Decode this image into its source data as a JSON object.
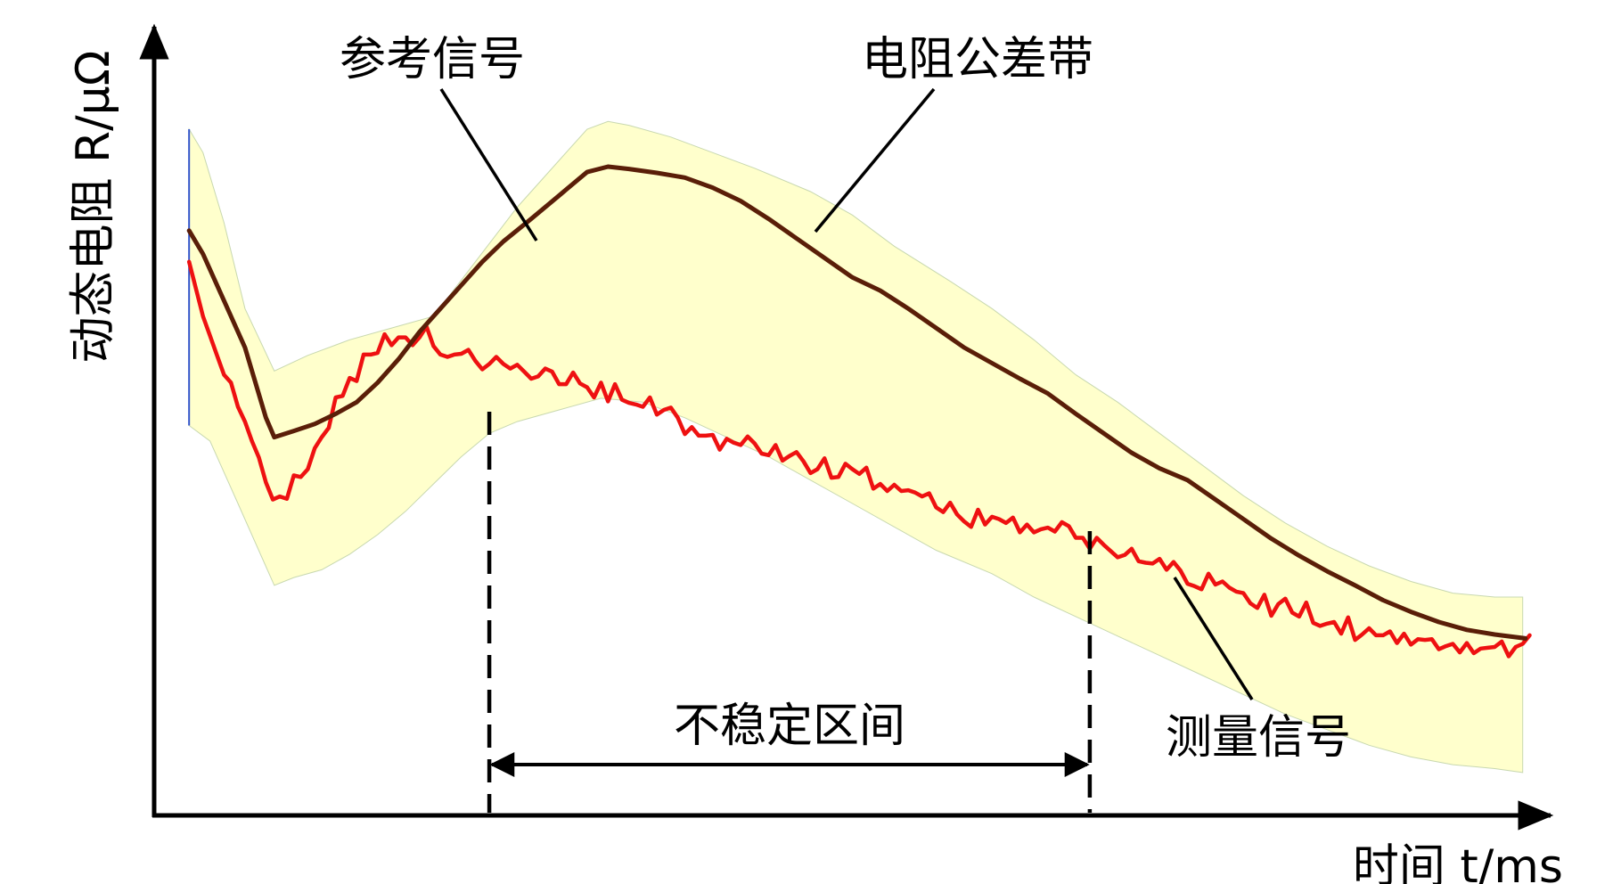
{
  "chart_data": {
    "type": "line",
    "title": "",
    "xlabel": "时间 t/ms",
    "ylabel": "动态电阻 R/μΩ",
    "grid": false,
    "annotations": {
      "reference": "参考信号",
      "band": "电阻公差带",
      "measured": "测量信号",
      "unstable": "不稳定区间"
    },
    "colors": {
      "band_fill": "#ffffcc",
      "reference": "#5a1e08",
      "measured": "#ee1111",
      "axis": "#000000"
    },
    "x_range": [
      0,
      100
    ],
    "y_range": [
      0,
      100
    ],
    "unstable_interval": [
      24,
      67
    ],
    "series": [
      {
        "role": "band_upper",
        "x": [
          2.5,
          3.5,
          5,
          6.5,
          8.6,
          11,
          14,
          17,
          20,
          23,
          26,
          29,
          31,
          32.5,
          34,
          37,
          40,
          43,
          47,
          50,
          53,
          57,
          60,
          63,
          66,
          69,
          72,
          75,
          78,
          81,
          84,
          87,
          90,
          93,
          96,
          98
        ],
        "y": [
          88,
          85,
          76,
          65,
          57,
          59,
          61,
          62.5,
          64,
          71,
          78,
          84,
          88,
          89,
          88.5,
          87,
          85,
          83,
          80,
          77,
          73,
          68.5,
          65,
          61,
          56.5,
          53,
          49,
          45,
          41,
          37.5,
          34.5,
          32,
          30,
          28.5,
          28,
          28
        ]
      },
      {
        "role": "band_lower",
        "x": [
          2.5,
          4,
          6,
          8.6,
          10,
          12,
          14,
          16,
          18,
          20,
          22,
          24,
          26,
          29,
          32,
          35,
          38,
          41,
          44,
          47,
          50,
          53,
          56,
          60,
          63,
          66,
          69,
          72,
          75,
          78,
          81,
          84,
          87,
          90,
          93,
          96,
          98
        ],
        "y": [
          50,
          48,
          40,
          29.5,
          30.5,
          31.5,
          33.5,
          36,
          39,
          42.5,
          46,
          49,
          50.5,
          52,
          53.5,
          53,
          51,
          48.5,
          46,
          43,
          40,
          37,
          34,
          31,
          28,
          25.5,
          23,
          20.5,
          18,
          15.5,
          13,
          11,
          9,
          7.5,
          6.5,
          6,
          5.5
        ]
      },
      {
        "name": "参考信号",
        "role": "reference",
        "x": [
          2.5,
          3.5,
          5,
          6.5,
          8,
          8.6,
          10,
          11.5,
          13,
          14.5,
          16,
          17.5,
          19,
          20.5,
          22,
          23.5,
          25,
          27,
          29,
          31,
          32.5,
          34,
          36,
          38,
          40,
          42,
          44,
          46,
          48,
          50,
          52,
          54,
          56,
          58,
          60,
          62,
          64,
          66,
          68,
          70,
          72,
          74,
          76,
          78,
          80,
          82,
          84,
          86,
          88,
          90,
          92,
          94,
          96,
          98.2
        ],
        "y": [
          75,
          72,
          66,
          60,
          51,
          48.5,
          49.3,
          50.2,
          51.5,
          53,
          55.5,
          58.5,
          62,
          65,
          68,
          71,
          73.6,
          76.5,
          79.5,
          82.5,
          83.2,
          82.9,
          82.4,
          81.8,
          80.5,
          78.8,
          76.5,
          74,
          71.5,
          69,
          67.3,
          65,
          62.5,
          60,
          58,
          56,
          54.1,
          51.5,
          49,
          46.5,
          44.5,
          43,
          40.5,
          38,
          35.5,
          33.3,
          31.3,
          29.5,
          27.6,
          26.1,
          24.8,
          23.8,
          23.2,
          22.7
        ]
      },
      {
        "name": "测量信号",
        "role": "measured",
        "x": [
          2.5,
          3,
          3.5,
          4,
          4.5,
          5,
          5.5,
          6,
          6.5,
          7,
          7.5,
          8,
          8.5,
          9,
          9.5,
          10,
          10.5,
          11,
          11.5,
          12,
          12.5,
          13,
          13.5,
          14,
          14.5,
          15,
          15.5,
          16,
          16.5,
          17,
          17.5,
          18,
          18.5,
          19,
          19.5,
          20,
          20.5,
          21,
          21.5,
          22,
          22.5,
          23,
          23.5,
          24,
          24.5,
          25,
          25.5,
          26,
          26.5,
          27,
          27.5,
          28,
          28.5,
          29,
          29.5,
          30,
          30.5,
          31,
          31.5,
          32,
          32.5,
          33,
          33.5,
          34,
          34.5,
          35,
          35.5,
          36,
          36.5,
          37,
          37.5,
          38,
          38.5,
          39,
          39.5,
          40,
          40.5,
          41,
          41.5,
          42,
          42.5,
          43,
          43.5,
          44,
          44.5,
          45,
          45.5,
          46,
          46.5,
          47,
          47.5,
          48,
          48.5,
          49,
          49.5,
          50,
          50.5,
          51,
          51.5,
          52,
          52.5,
          53,
          53.5,
          54,
          54.5,
          55,
          55.5,
          56,
          56.5,
          57,
          57.5,
          58,
          58.5,
          59,
          59.5,
          60,
          60.5,
          61,
          61.5,
          62,
          62.5,
          63,
          63.5,
          64,
          64.5,
          65,
          65.5,
          66,
          66.5,
          67,
          67.5,
          68,
          68.5,
          69,
          69.5,
          70,
          70.5,
          71,
          71.5,
          72,
          72.5,
          73,
          73.5,
          74,
          74.5,
          75,
          75.5,
          76,
          76.5,
          77,
          77.5,
          78,
          78.5,
          79,
          79.5,
          80,
          80.5,
          81,
          81.5,
          82,
          82.5,
          83,
          83.5,
          84,
          84.5,
          85,
          85.5,
          86,
          86.5,
          87,
          87.5,
          88,
          88.5,
          89,
          89.5,
          90,
          90.5,
          91,
          91.5,
          92,
          92.5,
          93,
          93.5,
          94,
          94.5,
          95,
          95.5,
          96,
          96.5,
          97,
          97.5,
          98,
          98.5
        ],
        "y": [
          71,
          67.5,
          64,
          61.5,
          59,
          56.5,
          55.5,
          52.4,
          50.5,
          48,
          45.9,
          42.7,
          40.5,
          40.9,
          40.6,
          43.6,
          43.4,
          44.4,
          47.1,
          48.5,
          49.7,
          53.6,
          53.8,
          56.1,
          55.7,
          59.1,
          59.1,
          59.3,
          61.7,
          60.3,
          61.3,
          61.3,
          60.3,
          61.3,
          62.7,
          60.2,
          59.1,
          58.8,
          59.1,
          59.2,
          59.7,
          58.3,
          57.2,
          57.9,
          58.8,
          57.9,
          57.3,
          57.8,
          56.9,
          56.0,
          56.3,
          57.3,
          56.9,
          55.3,
          55.3,
          56.8,
          55.4,
          54.9,
          53.6,
          55.5,
          53.1,
          55.3,
          53.3,
          52.9,
          52.7,
          52.4,
          53.6,
          51.4,
          52.0,
          52.3,
          51.0,
          48.9,
          49.8,
          48.7,
          48.7,
          48.8,
          46.9,
          48.3,
          47.8,
          47.5,
          48.6,
          47.7,
          46.4,
          46.2,
          47.5,
          45.5,
          46.1,
          46.6,
          45.4,
          43.9,
          44.4,
          45.8,
          43.3,
          43.4,
          45.1,
          44.4,
          43.8,
          44.6,
          41.9,
          42.5,
          41.6,
          42.4,
          41.6,
          41.7,
          41.4,
          40.9,
          41.3,
          39.5,
          38.9,
          40.1,
          38.6,
          37.7,
          37.0,
          39.2,
          37.3,
          38.3,
          38.0,
          37.5,
          38.2,
          36.3,
          37.3,
          36.3,
          36.7,
          36.9,
          36.4,
          37.6,
          37.1,
          35.6,
          35.6,
          34.2,
          35.6,
          34.7,
          33.9,
          33.1,
          33.4,
          34.2,
          32.6,
          32.4,
          32.3,
          32.9,
          31.5,
          32.5,
          31.4,
          29.7,
          29.4,
          29.0,
          31.0,
          29.6,
          30.0,
          29.2,
          28.7,
          28.5,
          27.2,
          26.6,
          28.3,
          25.6,
          27.1,
          27.8,
          26.0,
          25.5,
          27.3,
          24.7,
          24.3,
          24.6,
          24.8,
          23.3,
          25.4,
          22.5,
          23.2,
          24.0,
          23.1,
          23.1,
          23.6,
          22.1,
          23.3,
          21.9,
          22.6,
          22.5,
          22.6,
          21.3,
          21.7,
          22.0,
          20.9,
          22.1,
          20.8,
          21.4,
          21.5,
          21.6,
          22.3,
          20.4,
          21.6,
          22.0,
          23.1
        ]
      }
    ]
  }
}
